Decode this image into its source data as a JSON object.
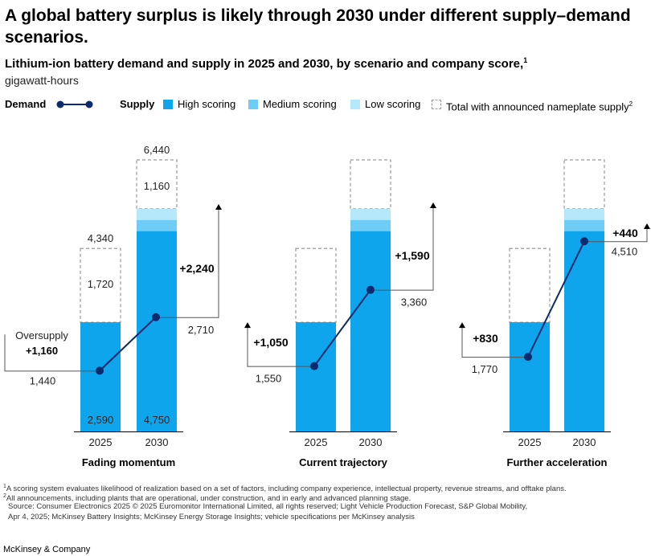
{
  "title": "A global battery surplus is likely through 2030 under different supply–demand scenarios.",
  "subtitle": "Lithium-ion battery demand and supply in 2025 and 2030, by scenario and company score,",
  "subtitle_footnote": "1",
  "units": "gigawatt-hours",
  "legend": {
    "demand_label": "Demand",
    "supply_label": "Supply",
    "high": "High scoring",
    "medium": "Medium scoring",
    "low": "Low scoring",
    "total": "Total with announced nameplate supply",
    "total_footnote": "2"
  },
  "colors": {
    "high": "#0ea5ec",
    "medium": "#6fcdf5",
    "low": "#b5e8fb",
    "demand": "#0c2a6e",
    "dashed": "#9a9a9a"
  },
  "chart_data": {
    "type": "bar",
    "ylim": [
      0,
      6440
    ],
    "categories": [
      "2025",
      "2030"
    ],
    "panels": [
      {
        "name": "Fading momentum",
        "supply_total": [
          4340,
          6440
        ],
        "supply_high": [
          2590,
          4750
        ],
        "supply_medium": [
          0,
          265
        ],
        "supply_low": [
          0,
          265
        ],
        "announced_gap": [
          1720,
          1160
        ],
        "demand": [
          1440,
          2710
        ],
        "oversupply": [
          "+1,160",
          "+2,240"
        ],
        "oversupply_label": "Oversupply",
        "total_labels": [
          "4,340",
          "6,440"
        ],
        "gap_labels": [
          "1,720",
          "1,160"
        ],
        "high_labels": [
          "2,590",
          "4,750"
        ],
        "demand_labels": [
          "1,440",
          "2,710"
        ]
      },
      {
        "name": "Current trajectory",
        "supply_total": [
          4340,
          6440
        ],
        "supply_high": [
          2590,
          4750
        ],
        "supply_medium": [
          0,
          265
        ],
        "supply_low": [
          0,
          265
        ],
        "demand": [
          1550,
          3360
        ],
        "oversupply": [
          "+1,050",
          "+1,590"
        ],
        "demand_labels": [
          "1,550",
          "3,360"
        ]
      },
      {
        "name": "Further acceleration",
        "supply_total": [
          4340,
          6440
        ],
        "supply_high": [
          2590,
          4750
        ],
        "supply_medium": [
          0,
          265
        ],
        "supply_low": [
          0,
          265
        ],
        "demand": [
          1770,
          4510
        ],
        "oversupply": [
          "+830",
          "+440"
        ],
        "demand_labels": [
          "1,770",
          "4,510"
        ]
      }
    ]
  },
  "footnotes": {
    "f1_mark": "1",
    "f1": "A scoring system evaluates likelihood of realization based on a set of factors, including company experience, intellectual property, revenue streams, and offtake plans.",
    "f2_mark": "2",
    "f2": "All announcements, including plants that are operational, under construction, and in early and advanced planning stage.",
    "source1": "Source: Consumer Electronics 2025 © 2025 Euromonitor International Limited, all rights reserved; Light Vehicle Production Forecast, S&P Global Mobility,",
    "source2": "Apr 4, 2025; McKinsey Battery Insights; McKinsey Energy Storage Insights; vehicle specifications per McKinsey analysis"
  },
  "brand": "McKinsey & Company"
}
